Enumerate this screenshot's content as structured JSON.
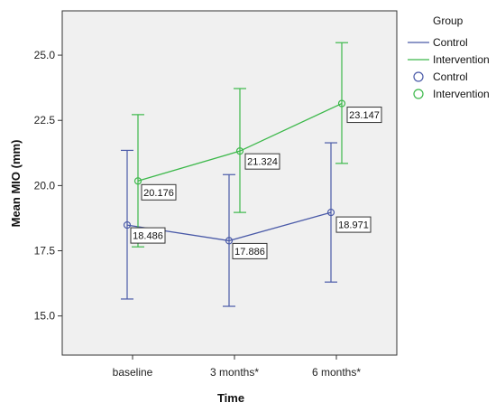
{
  "chart_data": {
    "type": "line",
    "xlabel": "Time",
    "ylabel": "Mean MIO (mm)",
    "categories": [
      "baseline",
      "3 months*",
      "6 months*"
    ],
    "ylim": [
      13.5,
      26.7
    ],
    "yticks": [
      "15.0",
      "17.5",
      "20.0",
      "22.5",
      "25.0"
    ],
    "ytick_values": [
      15.0,
      17.5,
      20.0,
      22.5,
      25.0
    ],
    "grid": false,
    "legend_title": "Group",
    "legend_position": "right",
    "legend_line_labels": [
      "Control",
      "Intervention"
    ],
    "legend_marker_labels": [
      "Control",
      "Intervention"
    ],
    "series": [
      {
        "name": "Control",
        "color": "#4a5aa8",
        "values": [
          18.486,
          17.886,
          18.971
        ],
        "labels": [
          "18.486",
          "17.886",
          "18.971"
        ],
        "error_low": [
          15.65,
          15.37,
          16.3
        ],
        "error_high": [
          21.35,
          20.42,
          21.64
        ]
      },
      {
        "name": "Intervention",
        "color": "#3cb84a",
        "values": [
          20.176,
          21.324,
          23.147
        ],
        "labels": [
          "20.176",
          "21.324",
          "23.147"
        ],
        "error_low": [
          17.65,
          18.97,
          20.85
        ],
        "error_high": [
          22.72,
          23.72,
          25.48
        ]
      }
    ]
  },
  "colors": {
    "plot_background": "#f0f0f0",
    "frame": "#333333"
  }
}
